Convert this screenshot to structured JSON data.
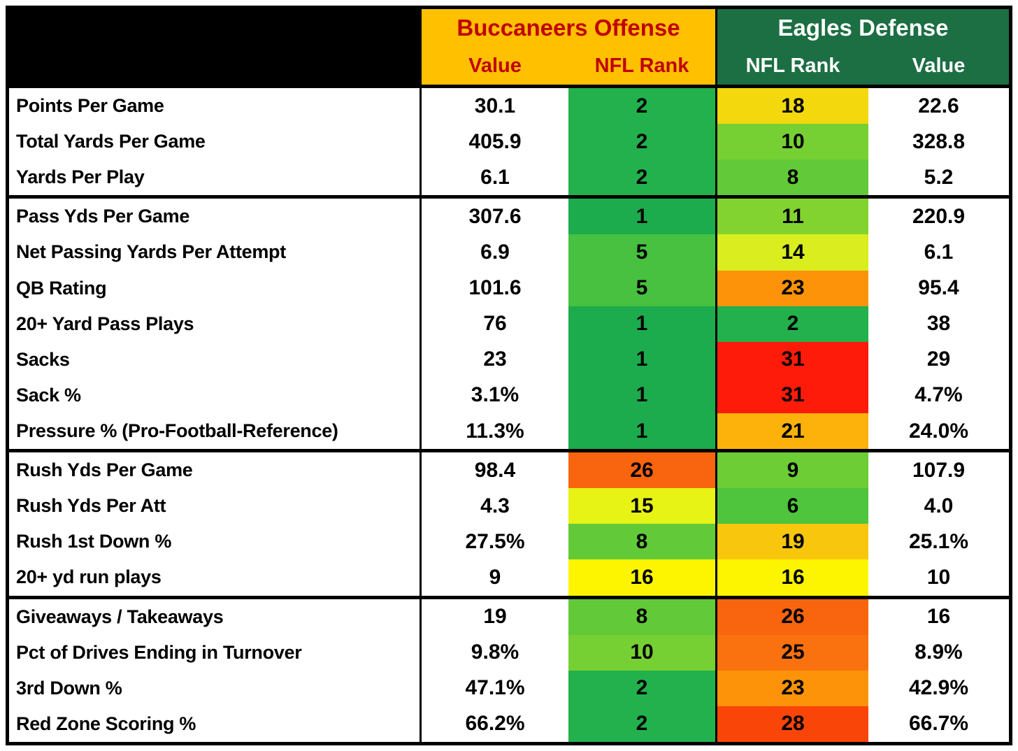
{
  "header": {
    "corner_label": "",
    "offense_title": "Buccaneers Offense",
    "offense_col_value": "Value",
    "offense_col_rank": "NFL Rank",
    "defense_title": "Eagles Defense",
    "defense_col_rank": "NFL Rank",
    "defense_col_value": "Value"
  },
  "colors": {
    "offense_header_bg": "#FFC000",
    "offense_header_text": "#C00000",
    "defense_header_bg": "#1C6E43",
    "defense_header_text": "#FFFFFF",
    "corner_bg": "#000000",
    "border": "#000000",
    "rank_scale_best": "#1CAB4D",
    "rank_scale_mid": "#FDF500",
    "rank_scale_worst": "#FE1B09"
  },
  "chart_data": {
    "type": "table",
    "column_groups": [
      {
        "title": "Buccaneers Offense",
        "columns": [
          "Value",
          "NFL Rank"
        ]
      },
      {
        "title": "Eagles Defense",
        "columns": [
          "NFL Rank",
          "Value"
        ]
      }
    ],
    "groups": [
      {
        "rows": [
          {
            "label": "Points Per Game",
            "off_val": "30.1",
            "off_rank": "2",
            "off_color": "#22B14C",
            "def_rank": "18",
            "def_color": "#F3D80D",
            "def_val": "22.6"
          },
          {
            "label": "Total Yards Per Game",
            "off_val": "405.9",
            "off_rank": "2",
            "off_color": "#22B14C",
            "def_rank": "10",
            "def_color": "#77D033",
            "def_val": "328.8"
          },
          {
            "label": "Yards Per Play",
            "off_val": "6.1",
            "off_rank": "2",
            "off_color": "#22B14C",
            "def_rank": "8",
            "def_color": "#62CA38",
            "def_val": "5.2"
          }
        ]
      },
      {
        "rows": [
          {
            "label": "Pass Yds Per Game",
            "off_val": "307.6",
            "off_rank": "1",
            "off_color": "#1CAB4D",
            "def_rank": "11",
            "def_color": "#83D330",
            "def_val": "220.9"
          },
          {
            "label": "Net Passing Yards Per Attempt",
            "off_val": "6.9",
            "off_rank": "5",
            "off_color": "#47C13F",
            "def_rank": "14",
            "def_color": "#D9ED1F",
            "def_val": "6.1"
          },
          {
            "label": "QB Rating",
            "off_val": "101.6",
            "off_rank": "5",
            "off_color": "#47C13F",
            "def_rank": "23",
            "def_color": "#FC9308",
            "def_val": "95.4"
          },
          {
            "label": "20+ Yard Pass Plays",
            "off_val": "76",
            "off_rank": "1",
            "off_color": "#1CAB4D",
            "def_rank": "2",
            "def_color": "#22B14C",
            "def_val": "38"
          },
          {
            "label": "Sacks",
            "off_val": "23",
            "off_rank": "1",
            "off_color": "#1CAB4D",
            "def_rank": "31",
            "def_color": "#FE1B09",
            "def_val": "29"
          },
          {
            "label": "Sack %",
            "off_val": "3.1%",
            "off_rank": "1",
            "off_color": "#1CAB4D",
            "def_rank": "31",
            "def_color": "#FE1B09",
            "def_val": "4.7%"
          },
          {
            "label": "Pressure % (Pro-Football-Reference)",
            "off_val": "11.3%",
            "off_rank": "1",
            "off_color": "#1CAB4D",
            "def_rank": "21",
            "def_color": "#FCB20B",
            "def_val": "24.0%"
          }
        ]
      },
      {
        "rows": [
          {
            "label": "Rush Yds Per Game",
            "off_val": "98.4",
            "off_rank": "26",
            "off_color": "#F9640E",
            "def_rank": "9",
            "def_color": "#6CCD35",
            "def_val": "107.9"
          },
          {
            "label": "Rush Yds Per Att",
            "off_val": "4.3",
            "off_rank": "15",
            "off_color": "#E7F215",
            "def_rank": "6",
            "def_color": "#4FC43D",
            "def_val": "4.0"
          },
          {
            "label": "Rush 1st Down %",
            "off_val": "27.5%",
            "off_rank": "8",
            "off_color": "#62CA38",
            "def_rank": "19",
            "def_color": "#F7C60D",
            "def_val": "25.1%"
          },
          {
            "label": "20+ yd run plays",
            "off_val": "9",
            "off_rank": "16",
            "off_color": "#FDF500",
            "def_rank": "16",
            "def_color": "#FDF500",
            "def_val": "10"
          }
        ]
      },
      {
        "rows": [
          {
            "label": "Giveaways / Takeaways",
            "off_val": "19",
            "off_rank": "8",
            "off_color": "#62CA38",
            "def_rank": "26",
            "def_color": "#F9640E",
            "def_val": "16"
          },
          {
            "label": "Pct of Drives Ending in Turnover",
            "off_val": "9.8%",
            "off_rank": "10",
            "off_color": "#77D033",
            "def_rank": "25",
            "def_color": "#FA7110",
            "def_val": "8.9%"
          },
          {
            "label": "3rd Down %",
            "off_val": "47.1%",
            "off_rank": "2",
            "off_color": "#22B14C",
            "def_rank": "23",
            "def_color": "#FC9308",
            "def_val": "42.9%"
          },
          {
            "label": "Red Zone Scoring %",
            "off_val": "66.2%",
            "off_rank": "2",
            "off_color": "#22B14C",
            "def_rank": "28",
            "def_color": "#FA4508",
            "def_val": "66.7%"
          }
        ]
      }
    ]
  }
}
